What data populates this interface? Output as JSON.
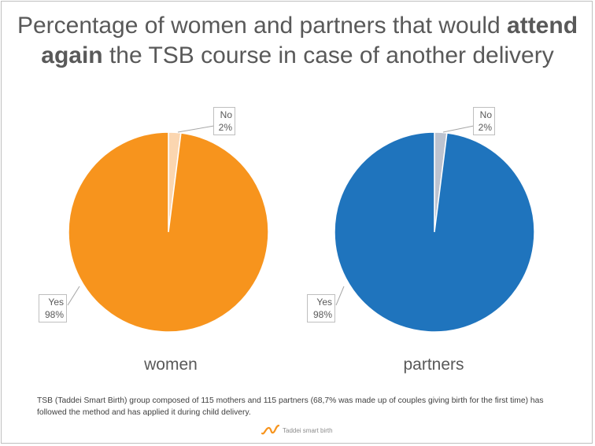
{
  "title_parts": {
    "part1": "Percentage of women and partners that would ",
    "bold1": "attend",
    "bold2": "again",
    "part2": " the TSB course in case of another delivery"
  },
  "chart_data": [
    {
      "type": "pie",
      "title": "women",
      "categories": [
        "Yes",
        "No"
      ],
      "values": [
        98,
        2
      ],
      "labels": [
        "98%",
        "2%"
      ],
      "colors": [
        "#f7941d",
        "#fbd6b0"
      ]
    },
    {
      "type": "pie",
      "title": "partners",
      "categories": [
        "Yes",
        "No"
      ],
      "values": [
        98,
        2
      ],
      "labels": [
        "98%",
        "2%"
      ],
      "colors": [
        "#1f74bd",
        "#bcc3d0"
      ]
    }
  ],
  "footnote": "TSB (Taddei Smart Birth) group composed of 115 mothers and 115 partners (68,7% was made up of couples giving birth for the first time) has followed the method and has applied it during child delivery.",
  "logo": {
    "text": "Taddei smart birth",
    "color": "#f7941d"
  }
}
